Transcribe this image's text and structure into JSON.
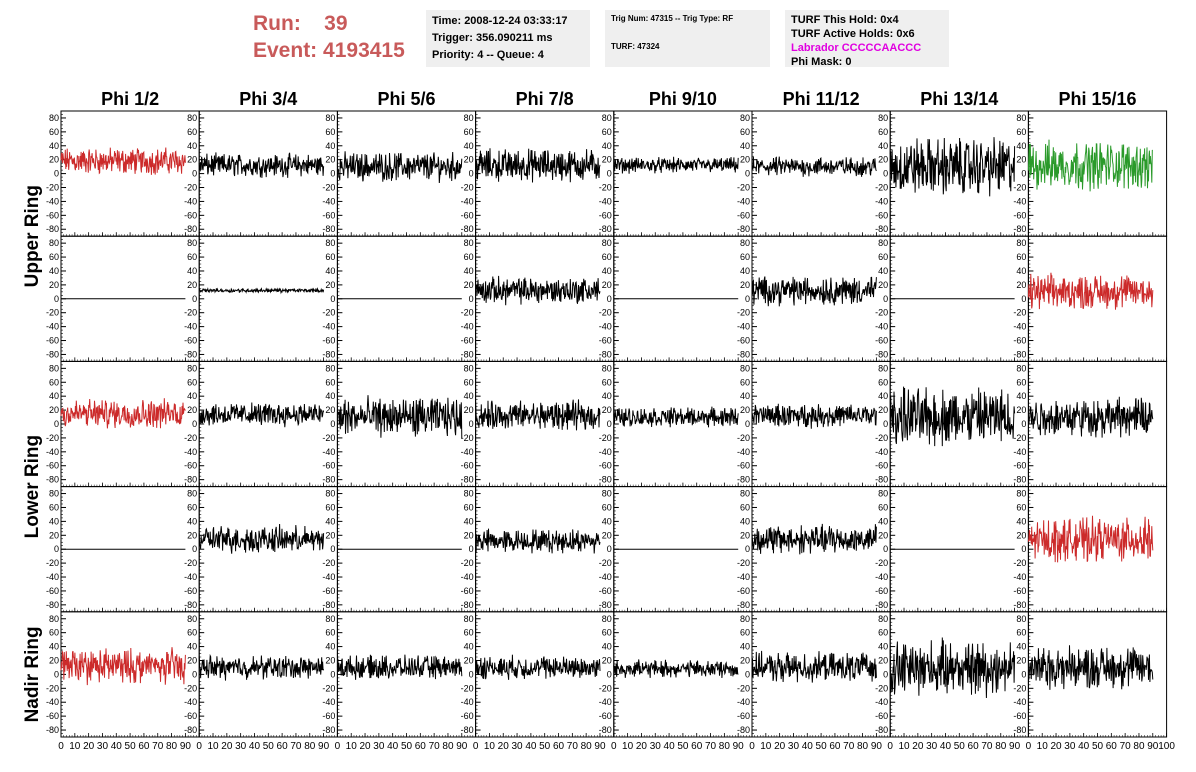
{
  "header": {
    "run_label": "Run:",
    "run_value": "39",
    "event_label": "Event:",
    "event_value": "4193415"
  },
  "info": {
    "time": "Time: 2008-12-24 03:33:17",
    "trigger": "Trigger: 356.090211 ms",
    "priority": "Priority: 4 -- Queue: 4",
    "trig_num": "Trig Num: 47315 -- Trig Type: RF",
    "turf": "TURF: 47324",
    "turf_hold": "TURF This Hold: 0x4",
    "turf_active": "TURF Active Holds: 0x6",
    "labrador": "Labrador CCCCCAACCC",
    "phi_mask": "Phi Mask: 0"
  },
  "colors": {
    "triggered": "#cc2a2a",
    "extra": "#2a9a2a",
    "normal": "#000000"
  },
  "chart_data": {
    "type": "line",
    "columns": [
      "Phi 1/2",
      "Phi 3/4",
      "Phi 5/6",
      "Phi 7/8",
      "Phi 9/10",
      "Phi 11/12",
      "Phi 13/14",
      "Phi 15/16"
    ],
    "ring_labels": [
      {
        "label": "Upper Ring",
        "rows": [
          0,
          1
        ]
      },
      {
        "label": "Lower Ring",
        "rows": [
          2,
          3
        ]
      },
      {
        "label": "Nadir Ring",
        "rows": [
          4
        ]
      }
    ],
    "xlim": [
      0,
      100
    ],
    "ylim": [
      -90,
      90
    ],
    "y_ticks": [
      -80,
      -60,
      -40,
      -20,
      0,
      20,
      40,
      60,
      80
    ],
    "x_ticks": [
      0,
      10,
      20,
      30,
      40,
      50,
      60,
      70,
      80,
      90,
      100
    ],
    "x_tick_labels": [
      "0",
      "10",
      "20",
      "30",
      "40",
      "50",
      "60",
      "70",
      "80",
      "90",
      "100"
    ],
    "y_tick_labels": [
      "-80",
      "-60",
      "-40",
      "-20",
      "0",
      "20",
      "40",
      "60",
      "80"
    ],
    "x_end": 90,
    "panels": [
      [
        {
          "color": "triggered",
          "mean": 18,
          "amp": 14
        },
        {
          "color": "normal",
          "mean": 12,
          "amp": 12
        },
        {
          "color": "normal",
          "mean": 10,
          "amp": 15
        },
        {
          "color": "normal",
          "mean": 12,
          "amp": 17
        },
        {
          "color": "normal",
          "mean": 12,
          "amp": 8
        },
        {
          "color": "normal",
          "mean": 10,
          "amp": 10
        },
        {
          "color": "normal",
          "mean": 10,
          "amp": 30
        },
        {
          "color": "extra",
          "mean": 12,
          "amp": 25
        }
      ],
      [
        {
          "color": "normal",
          "mean": 0,
          "amp": 0
        },
        {
          "color": "normal",
          "mean": 12,
          "amp": 2
        },
        {
          "color": "normal",
          "mean": 0,
          "amp": 0
        },
        {
          "color": "normal",
          "mean": 12,
          "amp": 14
        },
        {
          "color": "normal",
          "mean": 0,
          "amp": 0
        },
        {
          "color": "normal",
          "mean": 12,
          "amp": 15
        },
        {
          "color": "normal",
          "mean": 0,
          "amp": 0
        },
        {
          "color": "triggered",
          "mean": 10,
          "amp": 18
        }
      ],
      [
        {
          "color": "triggered",
          "mean": 15,
          "amp": 15
        },
        {
          "color": "normal",
          "mean": 14,
          "amp": 12
        },
        {
          "color": "normal",
          "mean": 10,
          "amp": 20
        },
        {
          "color": "normal",
          "mean": 12,
          "amp": 15
        },
        {
          "color": "normal",
          "mean": 10,
          "amp": 10
        },
        {
          "color": "normal",
          "mean": 12,
          "amp": 12
        },
        {
          "color": "normal",
          "mean": 10,
          "amp": 30
        },
        {
          "color": "normal",
          "mean": 10,
          "amp": 20
        }
      ],
      [
        {
          "color": "normal",
          "mean": 0,
          "amp": 0
        },
        {
          "color": "normal",
          "mean": 14,
          "amp": 14
        },
        {
          "color": "normal",
          "mean": 0,
          "amp": 0
        },
        {
          "color": "normal",
          "mean": 12,
          "amp": 12
        },
        {
          "color": "normal",
          "mean": 0,
          "amp": 0
        },
        {
          "color": "normal",
          "mean": 14,
          "amp": 15
        },
        {
          "color": "normal",
          "mean": 0,
          "amp": 0
        },
        {
          "color": "triggered",
          "mean": 14,
          "amp": 22
        }
      ],
      [
        {
          "color": "triggered",
          "mean": 12,
          "amp": 18
        },
        {
          "color": "normal",
          "mean": 10,
          "amp": 12
        },
        {
          "color": "normal",
          "mean": 10,
          "amp": 12
        },
        {
          "color": "normal",
          "mean": 10,
          "amp": 12
        },
        {
          "color": "normal",
          "mean": 8,
          "amp": 9
        },
        {
          "color": "normal",
          "mean": 10,
          "amp": 15
        },
        {
          "color": "normal",
          "mean": 10,
          "amp": 28
        },
        {
          "color": "normal",
          "mean": 10,
          "amp": 22
        }
      ]
    ]
  }
}
